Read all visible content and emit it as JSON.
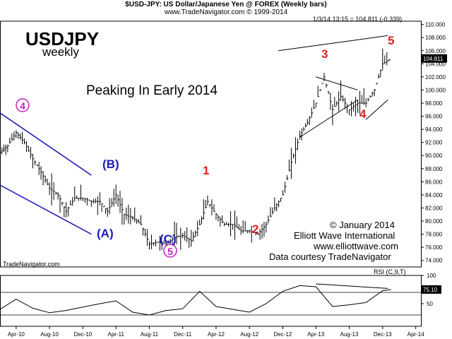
{
  "header": {
    "title": "$USD-JPY:  US Dollar/Japanese Yen @ FOREX  (Weekly bars)",
    "subtitle": "www.TradeNavigator.com © 1999-2014",
    "quote": "1/3/14 13:15 = 104.811 (-0.339)"
  },
  "annotations": {
    "symbol": "USDJPY",
    "period": "weekly",
    "headline": "Peaking In Early 2014",
    "copyright": "© January 2014",
    "company": "Elliott Wave International",
    "website": "www.elliottwave.com",
    "data_courtesy": "Data courtesy TradeNavigator",
    "watermark": "TradeNavigator.com",
    "last_price": "104.811",
    "rsi_label": "RSI (C,9,T)",
    "rsi_value": "75.10"
  },
  "wave_labels": {
    "w4_circle": "4",
    "wB": "(B)",
    "wA": "(A)",
    "wC": "(C)",
    "w5_circle": "5",
    "w1": "1",
    "w2": "2",
    "w3": "3",
    "w4": "4",
    "w5": "5"
  },
  "colors": {
    "blue": "#1a1ab8",
    "red": "#e02020",
    "purple": "#c020c0",
    "bars": "#000000"
  },
  "chart_data": [
    {
      "type": "line",
      "title": "$USD-JPY:  US Dollar/Japanese Yen @ FOREX  (Weekly bars)",
      "note": "weekly OHLC bars; closes approximated",
      "x": [
        "2010-02",
        "2010-03",
        "2010-04",
        "2010-05",
        "2010-06",
        "2010-07",
        "2010-08",
        "2010-09",
        "2010-10",
        "2010-11",
        "2010-12",
        "2011-01",
        "2011-02",
        "2011-03",
        "2011-04",
        "2011-05",
        "2011-06",
        "2011-07",
        "2011-08",
        "2011-09",
        "2011-10",
        "2011-11",
        "2011-12",
        "2012-01",
        "2012-02",
        "2012-03",
        "2012-04",
        "2012-05",
        "2012-06",
        "2012-07",
        "2012-08",
        "2012-09",
        "2012-10",
        "2012-11",
        "2012-12",
        "2013-01",
        "2013-02",
        "2013-03",
        "2013-04",
        "2013-05",
        "2013-06",
        "2013-07",
        "2013-08",
        "2013-09",
        "2013-10",
        "2013-11",
        "2013-12",
        "2014-01"
      ],
      "series": [
        {
          "values": [
            90.5,
            91.5,
            93.5,
            92,
            89.5,
            87.5,
            85,
            84,
            81.5,
            83.5,
            83.5,
            83,
            83,
            81.5,
            84,
            81,
            80.5,
            79.5,
            76.5,
            76.8,
            76.5,
            77.5,
            77.8,
            77,
            79.5,
            83,
            81,
            79.5,
            79.5,
            78.5,
            78.5,
            78,
            79.5,
            82,
            84,
            89,
            93,
            95,
            98,
            102,
            97,
            99,
            97,
            98,
            98,
            100,
            104,
            104.8
          ]
        }
      ],
      "xticks": [
        "Apr-10",
        "Aug-10",
        "Dec-10",
        "Apr-11",
        "Aug-11",
        "Dec-11",
        "Apr-12",
        "Aug-12",
        "Dec-12",
        "Apr-13",
        "Aug-13",
        "Dec-13",
        "Apr-14"
      ],
      "yticks": [
        "74.000",
        "76.000",
        "78.000",
        "80.000",
        "82.000",
        "84.000",
        "86.000",
        "88.000",
        "90.000",
        "92.000",
        "94.000",
        "96.000",
        "98.000",
        "100.000",
        "102.000",
        "104.000",
        "106.000",
        "108.000",
        "110.000"
      ],
      "ylim": [
        73,
        110.5
      ],
      "grid": false
    },
    {
      "type": "line",
      "title": "RSI (C,9,T)",
      "x": [
        "2010-02",
        "2010-04",
        "2010-06",
        "2010-08",
        "2010-10",
        "2010-12",
        "2011-02",
        "2011-04",
        "2011-06",
        "2011-08",
        "2011-10",
        "2011-12",
        "2012-02",
        "2012-04",
        "2012-06",
        "2012-08",
        "2012-10",
        "2012-12",
        "2013-02",
        "2013-04",
        "2013-06",
        "2013-08",
        "2013-10",
        "2013-12",
        "2014-01"
      ],
      "series": [
        {
          "values": [
            40,
            58,
            42,
            34,
            38,
            44,
            50,
            55,
            35,
            30,
            38,
            41,
            72,
            45,
            40,
            35,
            50,
            72,
            82,
            80,
            45,
            48,
            52,
            73,
            75.1
          ]
        }
      ],
      "yticks": [
        "50",
        "75",
        "100"
      ],
      "hlines": [
        30,
        70
      ],
      "ylim": [
        10,
        100
      ],
      "grid": false
    }
  ]
}
